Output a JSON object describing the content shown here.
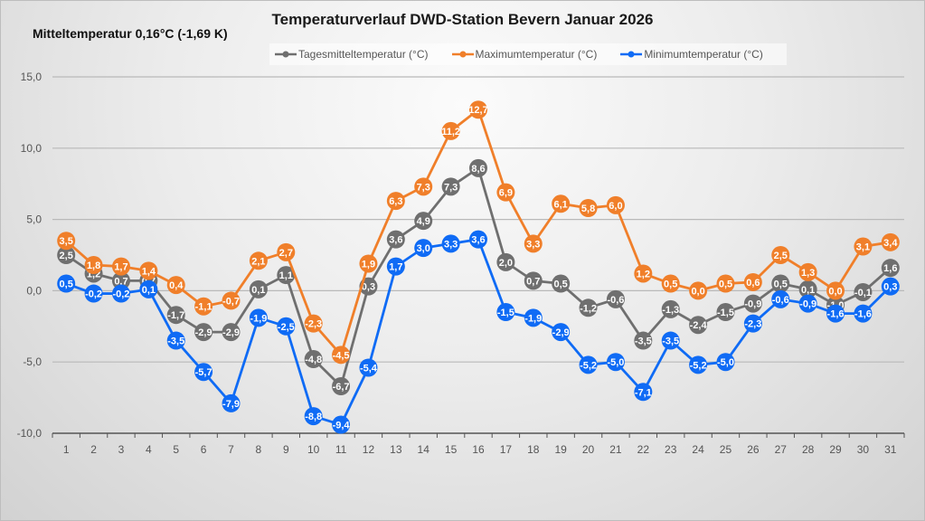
{
  "chart_data": {
    "type": "line",
    "title": "Temperaturverlauf DWD-Station Bevern Januar 2026",
    "subtitle": "Mitteltemperatur  0,16°C (-1,69 K)",
    "xlabel": "",
    "ylabel": "",
    "ylim": [
      -10,
      15
    ],
    "yticks": [
      15,
      10,
      5,
      0,
      -5,
      -10
    ],
    "ytick_labels": [
      "15,0",
      "10,0",
      "5,0",
      "0,0",
      "-5,0",
      "-10,0"
    ],
    "grid": true,
    "legend_position": "top",
    "x": [
      "1",
      "2",
      "3",
      "4",
      "5",
      "6",
      "7",
      "8",
      "9",
      "10",
      "11",
      "12",
      "13",
      "14",
      "15",
      "16",
      "17",
      "18",
      "19",
      "20",
      "21",
      "22",
      "23",
      "24",
      "25",
      "26",
      "27",
      "28",
      "29",
      "30",
      "31"
    ],
    "series": [
      {
        "name": "Tagesmitteltemperatur (°C)",
        "color": "#6f6f6f",
        "values": [
          2.5,
          1.2,
          0.7,
          0.7,
          -1.7,
          -2.9,
          -2.9,
          0.1,
          1.1,
          -4.8,
          -6.7,
          0.3,
          3.6,
          4.9,
          7.3,
          8.6,
          2.0,
          0.7,
          0.5,
          -1.2,
          -0.6,
          -3.5,
          -1.3,
          -2.4,
          -1.5,
          -0.9,
          0.5,
          0.1,
          -1.0,
          -0.1,
          1.6
        ]
      },
      {
        "name": "Maximumtemperatur (°C)",
        "color": "#f07f2a",
        "values": [
          3.5,
          1.8,
          1.7,
          1.4,
          0.4,
          -1.1,
          -0.7,
          2.1,
          2.7,
          -2.3,
          -4.5,
          1.9,
          6.3,
          7.3,
          11.2,
          12.7,
          6.9,
          3.3,
          6.1,
          5.8,
          6.0,
          1.2,
          0.5,
          0.0,
          0.5,
          0.6,
          2.5,
          1.3,
          0.0,
          3.1,
          3.4
        ]
      },
      {
        "name": "Minimumtemperatur (°C)",
        "color": "#0f6bf5",
        "values": [
          0.5,
          -0.2,
          -0.2,
          0.1,
          -3.5,
          -5.7,
          -7.9,
          -1.9,
          -2.5,
          -8.8,
          -9.4,
          -5.4,
          1.7,
          3.0,
          3.3,
          3.6,
          -1.5,
          -1.9,
          -2.9,
          -5.2,
          -5.0,
          -7.1,
          -3.5,
          -5.2,
          -5.0,
          -2.3,
          -0.6,
          -0.9,
          -1.6,
          -1.6,
          0.3
        ]
      }
    ]
  }
}
